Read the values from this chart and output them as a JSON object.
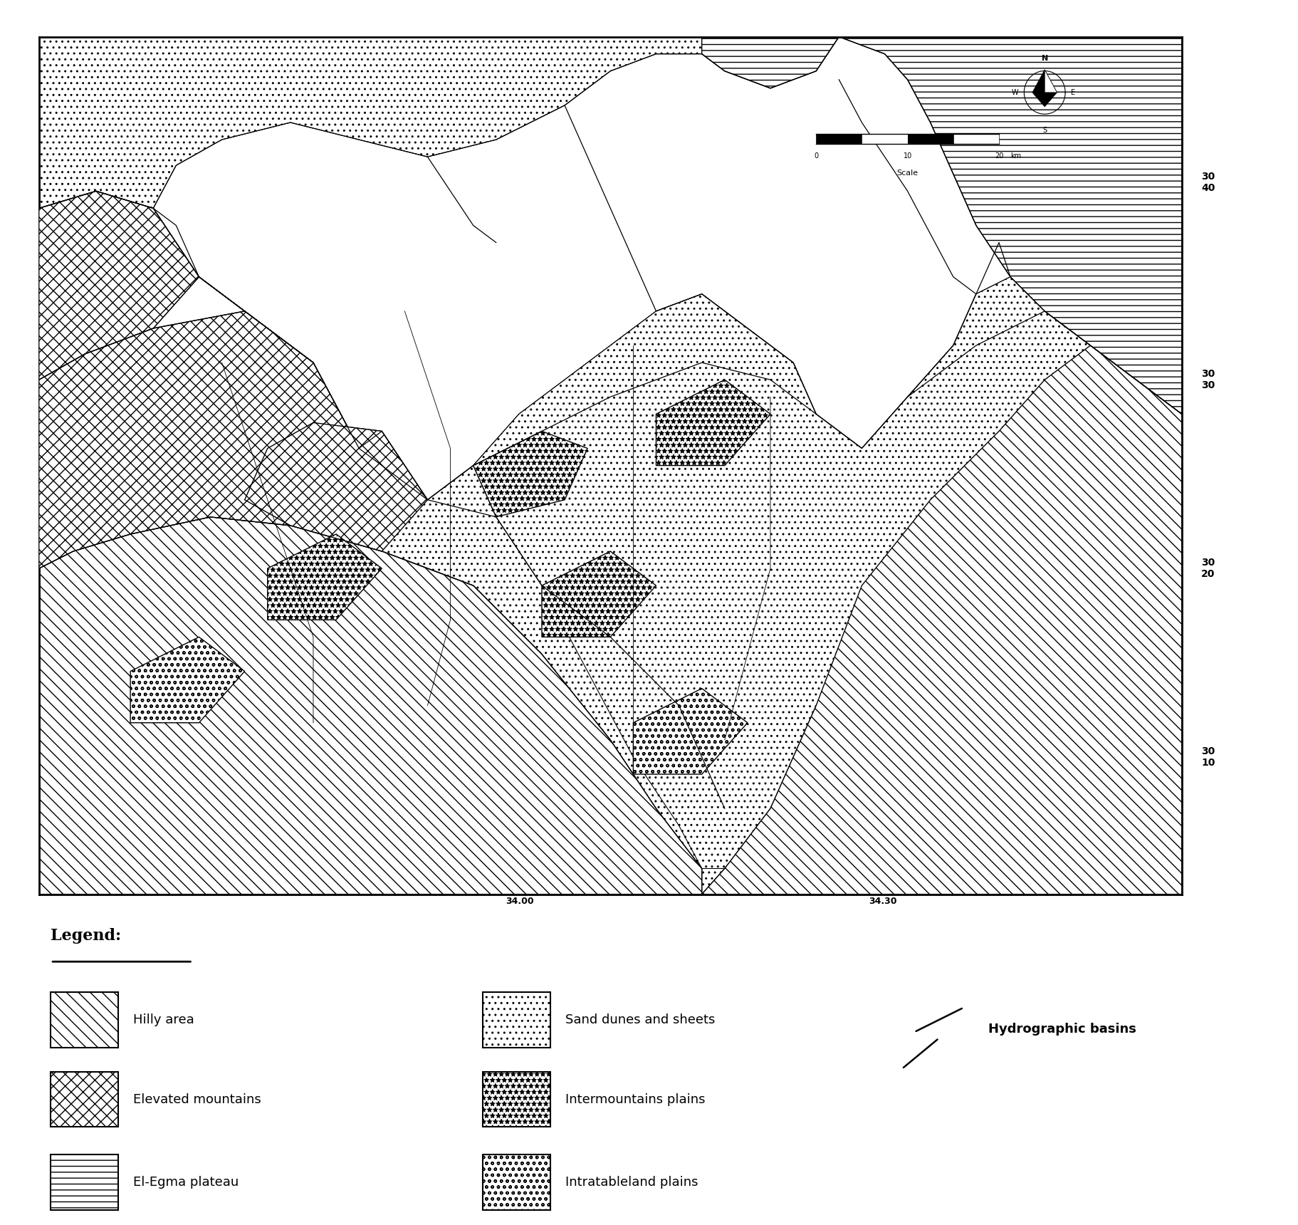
{
  "background_color": "#ffffff",
  "legend_title": "Legend:",
  "right_labels": [
    "30\n40",
    "30\n30",
    "30\n20",
    "30\n10"
  ],
  "bottom_labels": [
    "34.00",
    "34.30"
  ],
  "legend_left": [
    {
      "label": "Hilly area",
      "hatch": "\\\\"
    },
    {
      "label": "Elevated mountains",
      "hatch": "xx"
    },
    {
      "label": "El-Egma plateau",
      "hatch": "--"
    }
  ],
  "legend_right": [
    {
      "label": "Sand dunes and sheets",
      "hatch": ".."
    },
    {
      "label": "Intermountains plains",
      "hatch": "**"
    },
    {
      "label": "Intratableland plains",
      "hatch": "oo"
    }
  ],
  "legend_special": {
    "label": "Hydrographic basins"
  }
}
